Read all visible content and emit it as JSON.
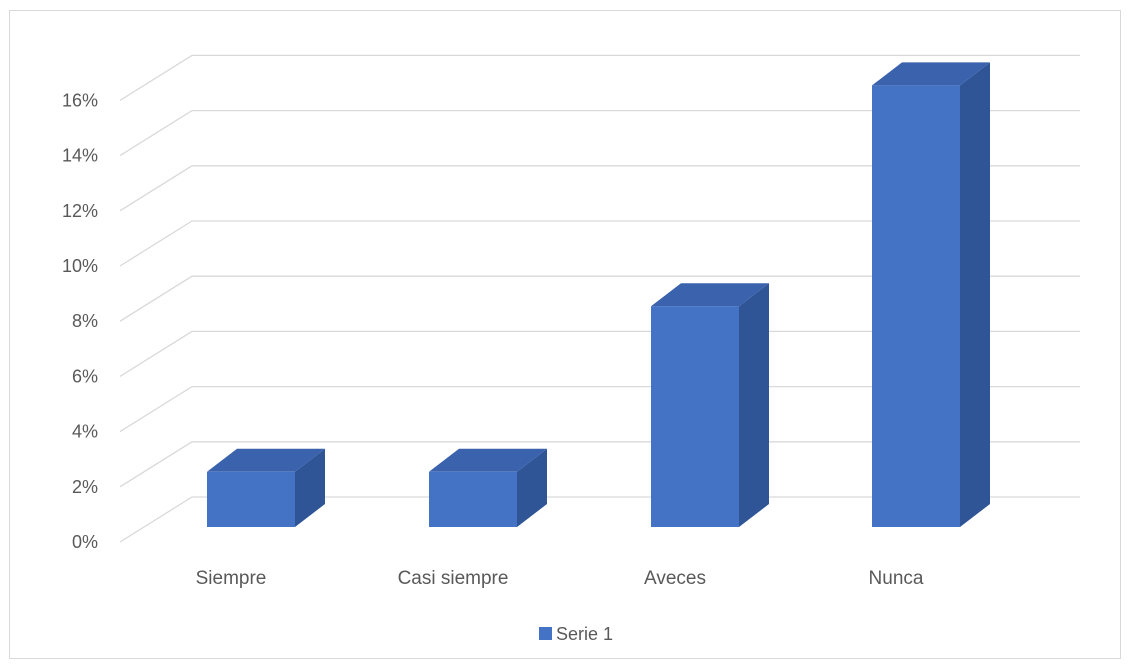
{
  "chart_data": {
    "type": "bar",
    "style": "3d-clustered-column",
    "categories": [
      "Siempre",
      "Casi siempre",
      "Aveces",
      "Nunca"
    ],
    "series": [
      {
        "name": "Serie 1",
        "values": [
          0.02,
          0.02,
          0.08,
          0.16
        ],
        "color_front": "#4472c4",
        "color_side": "#2f5597",
        "color_top": "#3a62ad"
      }
    ],
    "ylim": [
      0,
      0.16
    ],
    "yticks": [
      "0%",
      "2%",
      "4%",
      "6%",
      "8%",
      "10%",
      "12%",
      "14%",
      "16%"
    ],
    "grid": true,
    "legend_position": "bottom",
    "gridline_color": "#d9d9d9"
  }
}
